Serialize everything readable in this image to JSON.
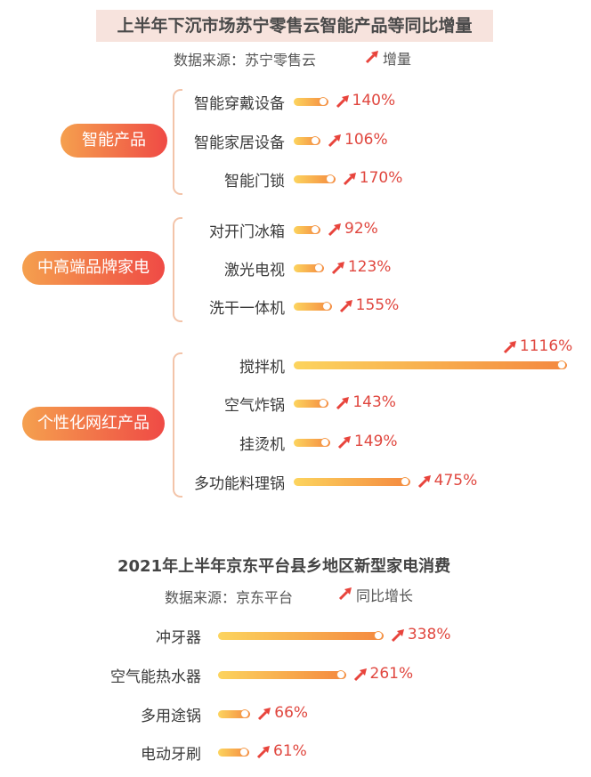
{
  "chart_data": [
    {
      "type": "bar",
      "title": "上半年下沉市场苏宁零售云智能产品等同比增量",
      "subtitle": "数据来源：苏宁零售云",
      "legend": "增量",
      "groups": [
        {
          "name": "智能产品",
          "items": [
            {
              "label": "智能穿戴设备",
              "value": 140,
              "display": "140%"
            },
            {
              "label": "智能家居设备",
              "value": 106,
              "display": "106%"
            },
            {
              "label": "智能门锁",
              "value": 170,
              "display": "170%"
            }
          ]
        },
        {
          "name": "中高端品牌家电",
          "items": [
            {
              "label": "对开门冰箱",
              "value": 92,
              "display": "92%"
            },
            {
              "label": "激光电视",
              "value": 123,
              "display": "123%"
            },
            {
              "label": "洗干一体机",
              "value": 155,
              "display": "155%"
            }
          ]
        },
        {
          "name": "个性化网红产品",
          "items": [
            {
              "label": "搅拌机",
              "value": 1116,
              "display": "1116%"
            },
            {
              "label": "空气炸锅",
              "value": 143,
              "display": "143%"
            },
            {
              "label": "挂烫机",
              "value": 149,
              "display": "149%"
            },
            {
              "label": "多功能料理锅",
              "value": 475,
              "display": "475%"
            }
          ]
        }
      ]
    },
    {
      "type": "bar",
      "title": "2021年上半年京东平台县乡地区新型家电消费",
      "subtitle": "数据来源：京东平台",
      "legend": "同比增长",
      "categories": [
        "冲牙器",
        "空气能热水器",
        "多用途锅",
        "电动牙刷"
      ],
      "values": [
        338,
        261,
        66,
        61
      ],
      "display": [
        "338%",
        "261%",
        "66%",
        "61%"
      ]
    }
  ],
  "colors": {
    "accent": "#ef4a45",
    "bar_start": "#fcd45e",
    "bar_end": "#f4883f",
    "pill_start": "#f5a04e",
    "title_bg": "#f7e3dd"
  },
  "icons": {
    "legend": "red-up-arrow-icon"
  }
}
